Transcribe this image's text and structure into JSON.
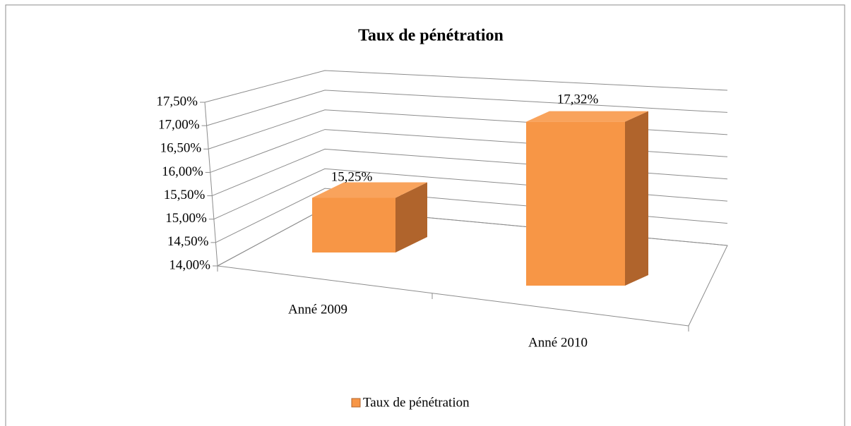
{
  "chart_data": {
    "type": "bar3d",
    "title": "Taux de pénétration",
    "categories": [
      "Anné 2009",
      "Anné 2010"
    ],
    "series": [
      {
        "name": "Taux de pénétration",
        "color": "#f79646",
        "values": [
          15.25,
          17.32
        ],
        "value_labels": [
          "15,25%",
          "17,32%"
        ]
      }
    ],
    "ylim": [
      14,
      17.5
    ],
    "yticks": [
      {
        "value": 14,
        "label": "14,00%"
      },
      {
        "value": 14.5,
        "label": "14,50%"
      },
      {
        "value": 15,
        "label": "15,00%"
      },
      {
        "value": 15.5,
        "label": "15,50%"
      },
      {
        "value": 16,
        "label": "16,00%"
      },
      {
        "value": 16.5,
        "label": "16,50%"
      },
      {
        "value": 17,
        "label": "17,00%"
      },
      {
        "value": 17.5,
        "label": "17,50%"
      }
    ],
    "grid": true,
    "legend": "bottom"
  }
}
